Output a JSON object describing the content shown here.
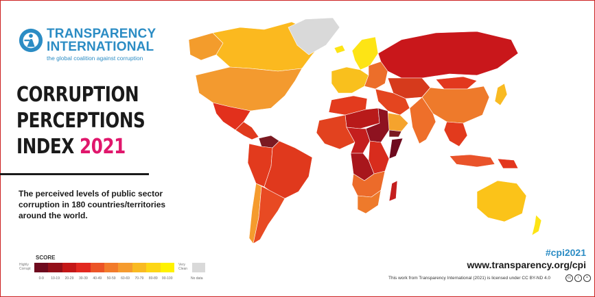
{
  "brand": {
    "name_line1": "TRANSPARENCY",
    "name_line2": "INTERNATIONAL",
    "tagline": "the global coalition against corruption",
    "color": "#2b8cc4"
  },
  "title": {
    "line1": "CORRUPTION",
    "line2": "PERCEPTIONS",
    "line3_prefix": "INDEX",
    "year": "2021",
    "year_color": "#e0176c"
  },
  "subtitle": "The perceived levels of public sector corruption in 180 countries/territories around the world.",
  "legend": {
    "title": "SCORE",
    "low_label": "Highly Corrupt",
    "high_label": "Very Clean",
    "nodata_label": "No data",
    "nodata_color": "#d9d9d9",
    "bins": [
      {
        "label": "0-9",
        "color": "#6e0a1e"
      },
      {
        "label": "10-19",
        "color": "#931019"
      },
      {
        "label": "20-29",
        "color": "#c41717"
      },
      {
        "label": "30-39",
        "color": "#e2281f"
      },
      {
        "label": "40-49",
        "color": "#ec5426"
      },
      {
        "label": "50-59",
        "color": "#f27b2b"
      },
      {
        "label": "60-69",
        "color": "#f59b2e"
      },
      {
        "label": "70-79",
        "color": "#f9ba22"
      },
      {
        "label": "80-89",
        "color": "#fdd615"
      },
      {
        "label": "90-100",
        "color": "#fff200"
      }
    ]
  },
  "footer": {
    "hashtag": "#cpi2021",
    "website": "www.transparency.org/cpi",
    "license": "This work from Transparency International (2021) is licensed under CC BY-ND 4.0"
  },
  "map_regions": [
    {
      "name": "canada",
      "color": "#fbb91f"
    },
    {
      "name": "alaska",
      "color": "#f39c2c"
    },
    {
      "name": "usa",
      "color": "#f39a2f"
    },
    {
      "name": "mexico",
      "color": "#e2301c"
    },
    {
      "name": "central-america",
      "color": "#e03a1d"
    },
    {
      "name": "venezuela",
      "color": "#7b1a22"
    },
    {
      "name": "brazil",
      "color": "#e0391d"
    },
    {
      "name": "south-america-west",
      "color": "#e23a1d"
    },
    {
      "name": "chile",
      "color": "#f59b2e"
    },
    {
      "name": "argentina",
      "color": "#e84a23"
    },
    {
      "name": "greenland",
      "color": "#d9d9d9"
    },
    {
      "name": "iceland",
      "color": "#fde415"
    },
    {
      "name": "scandinavia",
      "color": "#fde415"
    },
    {
      "name": "western-europe",
      "color": "#f9c01d"
    },
    {
      "name": "eastern-europe",
      "color": "#ec6e2a"
    },
    {
      "name": "russia",
      "color": "#c9171b"
    },
    {
      "name": "kazakhstan-central-asia",
      "color": "#d63a1c"
    },
    {
      "name": "middle-east",
      "color": "#e4451f"
    },
    {
      "name": "saudi-arabia",
      "color": "#f5a32d"
    },
    {
      "name": "yemen",
      "color": "#7b1a22"
    },
    {
      "name": "china",
      "color": "#ee7a2b"
    },
    {
      "name": "mongolia",
      "color": "#e2381e"
    },
    {
      "name": "india",
      "color": "#ee6f2a"
    },
    {
      "name": "southeast-asia",
      "color": "#e23a1d"
    },
    {
      "name": "indonesia",
      "color": "#e9532a"
    },
    {
      "name": "japan",
      "color": "#f9ba22"
    },
    {
      "name": "north-africa",
      "color": "#e33b1e"
    },
    {
      "name": "sahel-libya",
      "color": "#b81a1a"
    },
    {
      "name": "west-africa",
      "color": "#e2421f"
    },
    {
      "name": "sudan-south-sudan",
      "color": "#8e1220"
    },
    {
      "name": "central-africa",
      "color": "#c41e1e"
    },
    {
      "name": "dr-congo",
      "color": "#a8161c"
    },
    {
      "name": "east-africa",
      "color": "#d82c1d"
    },
    {
      "name": "somalia",
      "color": "#6e0a1e"
    },
    {
      "name": "southern-africa",
      "color": "#ec6b2a"
    },
    {
      "name": "south-africa",
      "color": "#ee7a2b"
    },
    {
      "name": "madagascar",
      "color": "#c41e1e"
    },
    {
      "name": "australia",
      "color": "#fbc319"
    },
    {
      "name": "new-zealand",
      "color": "#fde415"
    },
    {
      "name": "papua-new-guinea",
      "color": "#e3361d"
    }
  ]
}
